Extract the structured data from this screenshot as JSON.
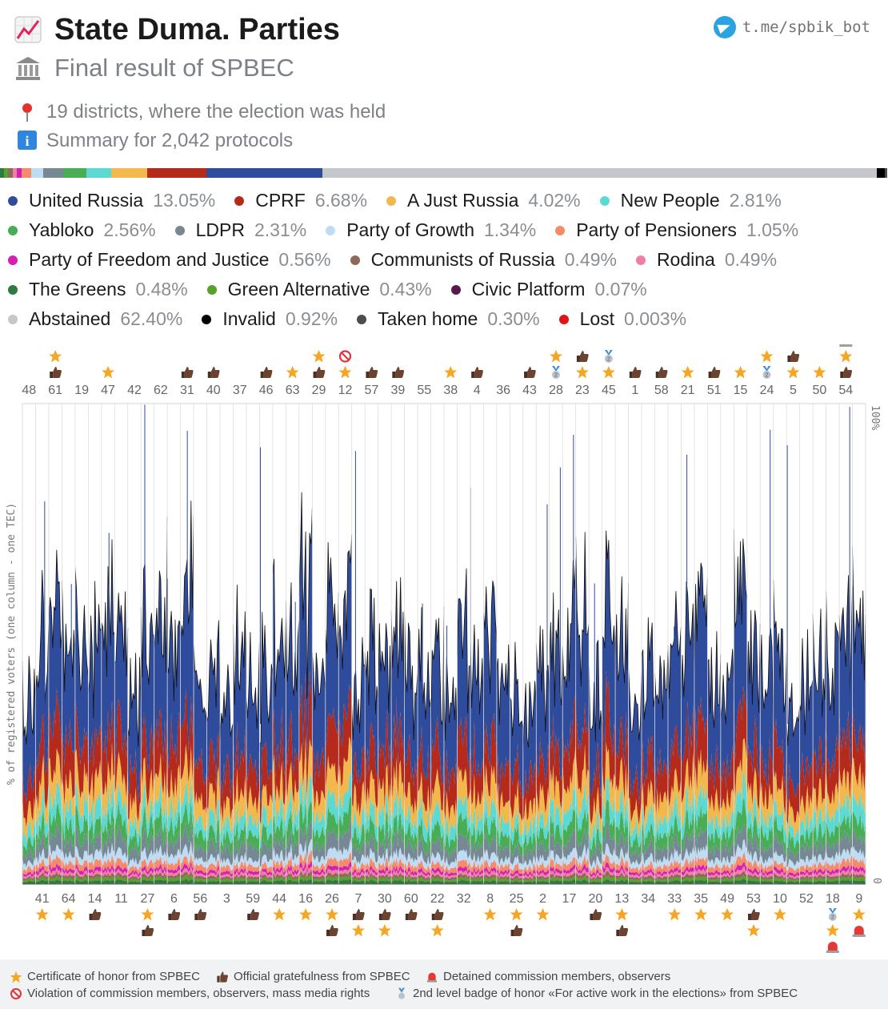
{
  "header": {
    "title": "State Duma. Parties",
    "subtitle": "Final result of SPBEC",
    "districts_line": "19 districts, where the election was held",
    "summary_line": "Summary for 2,042 protocols",
    "telegram": "t.me/spbik_bot"
  },
  "legend": [
    {
      "name": "United Russia",
      "pct": "13.05%",
      "color": "#2f4b9c",
      "share": 13.05
    },
    {
      "name": "CPRF",
      "pct": "6.68%",
      "color": "#b52a1b",
      "share": 6.68
    },
    {
      "name": "A Just Russia",
      "pct": "4.02%",
      "color": "#f2b84b",
      "share": 4.02
    },
    {
      "name": "New People",
      "pct": "2.81%",
      "color": "#5dd9d4",
      "share": 2.81
    },
    {
      "name": "Yabloko",
      "pct": "2.56%",
      "color": "#48ad55",
      "share": 2.56
    },
    {
      "name": "LDPR",
      "pct": "2.31%",
      "color": "#768894",
      "share": 2.31
    },
    {
      "name": "Party of Growth",
      "pct": "1.34%",
      "color": "#bfdcf5",
      "share": 1.34
    },
    {
      "name": "Party of Pensioners",
      "pct": "1.05%",
      "color": "#f58b6a",
      "share": 1.05
    },
    {
      "name": "Party of Freedom and Justice",
      "pct": "0.56%",
      "color": "#d41fb4",
      "share": 0.56
    },
    {
      "name": "Communists of Russia",
      "pct": "0.49%",
      "color": "#8c6a5b",
      "share": 0.49
    },
    {
      "name": "Rodina",
      "pct": "0.49%",
      "color": "#f07fa6",
      "share": 0.49
    },
    {
      "name": "The Greens",
      "pct": "0.48%",
      "color": "#2e7a40",
      "share": 0.48
    },
    {
      "name": "Green Alternative",
      "pct": "0.43%",
      "color": "#58a12b",
      "share": 0.43
    },
    {
      "name": "Civic Platform",
      "pct": "0.07%",
      "color": "#5a1852",
      "share": 0.07
    },
    {
      "name": "Abstained",
      "pct": "62.40%",
      "color": "#c5c7cc",
      "share": 62.4
    },
    {
      "name": "Invalid",
      "pct": "0.92%",
      "color": "#000000",
      "share": 0.92
    },
    {
      "name": "Taken home",
      "pct": "0.30%",
      "color": "#4d4d4d",
      "share": 0.3
    },
    {
      "name": "Lost",
      "pct": "0.003%",
      "color": "#e8101a",
      "share": 0.003
    }
  ],
  "footer": {
    "certificate": "Certificate of honor from SPBEC",
    "gratefulness": "Official gratefulness from SPBEC",
    "detained": "Detained commission members, observers",
    "violation": "Violation of commission members, observers, mass media rights",
    "badge": "2nd level badge of honor «For active work in the elections» from SPBEC"
  },
  "chart_data": {
    "type": "area",
    "ylabel": "% of registered voters (one column - one TEC)",
    "ylim": [
      0,
      100
    ],
    "y_ticks": [
      "100%",
      "0"
    ],
    "top_tecs": [
      "48",
      "61",
      "19",
      "47",
      "42",
      "62",
      "31",
      "40",
      "37",
      "46",
      "63",
      "29",
      "12",
      "57",
      "39",
      "55",
      "38",
      "4",
      "36",
      "43",
      "28",
      "23",
      "45",
      "1",
      "58",
      "21",
      "51",
      "15",
      "24",
      "5",
      "50",
      "54"
    ],
    "bottom_tecs": [
      "41",
      "64",
      "14",
      "11",
      "27",
      "6",
      "56",
      "3",
      "59",
      "44",
      "16",
      "26",
      "7",
      "30",
      "60",
      "22",
      "32",
      "8",
      "25",
      "2",
      "17",
      "20",
      "13",
      "34",
      "33",
      "35",
      "49",
      "53",
      "10",
      "52",
      "18",
      "9"
    ],
    "top_marks": {
      "61": [
        "star",
        "thumb"
      ],
      "47": [
        "star"
      ],
      "31": [
        "thumb"
      ],
      "40": [
        "thumb"
      ],
      "46": [
        "thumb"
      ],
      "63": [
        "star"
      ],
      "29": [
        "star",
        "thumb"
      ],
      "12": [
        "ban",
        "star"
      ],
      "57": [
        "thumb"
      ],
      "39": [
        "thumb"
      ],
      "38": [
        "star"
      ],
      "4": [
        "thumb"
      ],
      "43": [
        "thumb"
      ],
      "28": [
        "star",
        "medal"
      ],
      "23": [
        "thumb",
        "star"
      ],
      "45": [
        "medal",
        "star"
      ],
      "1": [
        "thumb"
      ],
      "58": [
        "thumb"
      ],
      "21": [
        "star"
      ],
      "51": [
        "thumb"
      ],
      "15": [
        "star"
      ],
      "24": [
        "star",
        "medal"
      ],
      "5": [
        "thumb",
        "star"
      ],
      "50": [
        "star"
      ],
      "54": [
        "siren",
        "star",
        "thumb"
      ]
    },
    "bottom_marks": {
      "41": [
        "star"
      ],
      "64": [
        "star"
      ],
      "14": [
        "thumb"
      ],
      "27": [
        "star",
        "thumb"
      ],
      "6": [
        "thumb"
      ],
      "56": [
        "thumb"
      ],
      "59": [
        "thumb"
      ],
      "44": [
        "star"
      ],
      "16": [
        "star"
      ],
      "26": [
        "star",
        "thumb"
      ],
      "7": [
        "thumb",
        "star"
      ],
      "30": [
        "thumb",
        "star"
      ],
      "60": [
        "thumb"
      ],
      "22": [
        "thumb",
        "star"
      ],
      "8": [
        "star"
      ],
      "25": [
        "star",
        "thumb"
      ],
      "2": [
        "star"
      ],
      "20": [
        "thumb"
      ],
      "13": [
        "star",
        "thumb"
      ],
      "33": [
        "star"
      ],
      "35": [
        "star"
      ],
      "49": [
        "star"
      ],
      "53": [
        "thumb",
        "star"
      ],
      "10": [
        "star"
      ],
      "18": [
        "medal",
        "star",
        "siren"
      ],
      "9": [
        "star",
        "siren"
      ]
    }
  }
}
